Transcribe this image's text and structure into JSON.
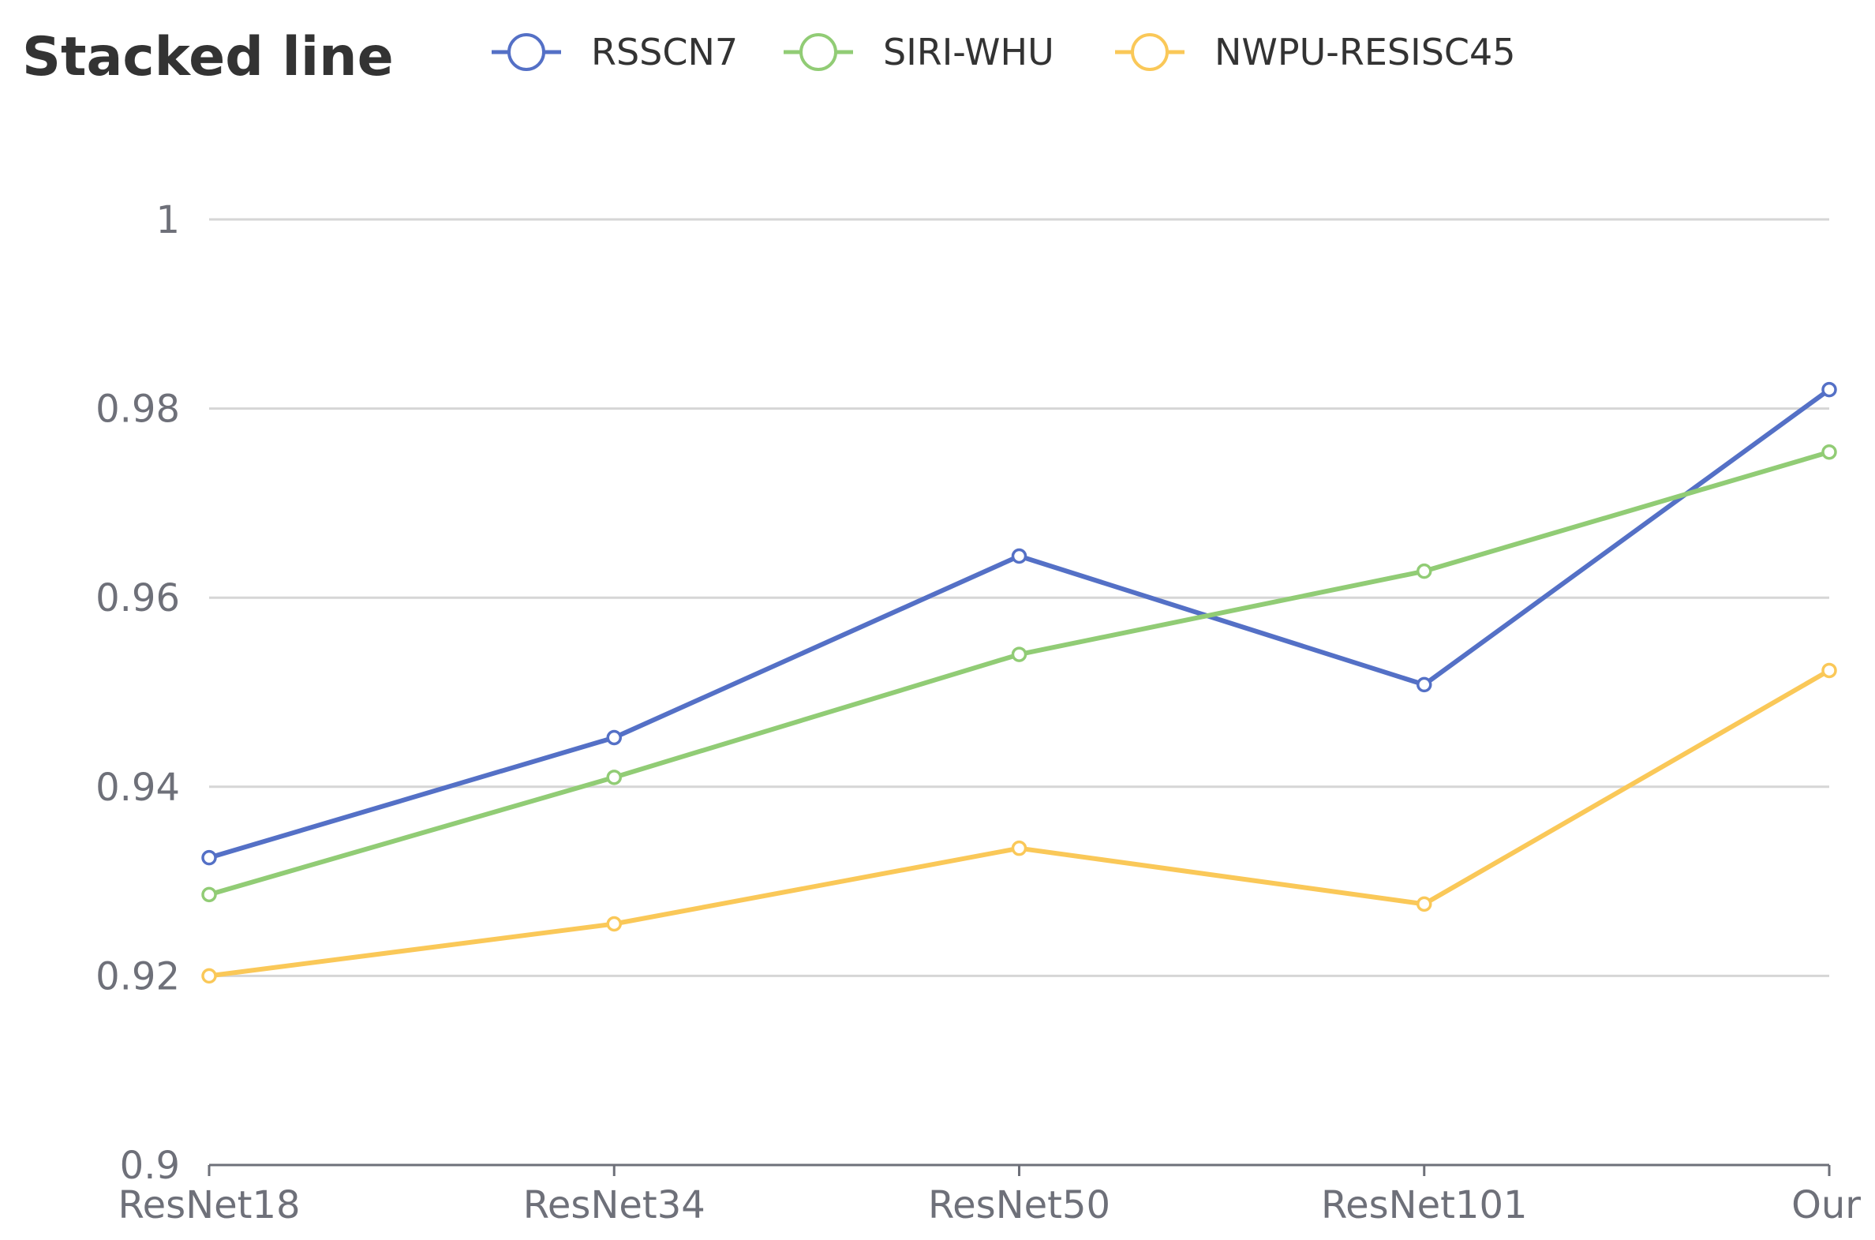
{
  "chart_data": {
    "type": "line",
    "title": "Stacked line",
    "xlabel": "",
    "ylabel": "",
    "categories": [
      "ResNet18",
      "ResNet34",
      "ResNet50",
      "ResNet101",
      "Our"
    ],
    "ylim": [
      0.9,
      1
    ],
    "yticks": [
      "0.9",
      "0.92",
      "0.94",
      "0.96",
      "0.98",
      "1"
    ],
    "grid": true,
    "legend_position": "top",
    "series": [
      {
        "name": "RSSCN7",
        "color": "#5470c6",
        "values": [
          0.9325,
          0.9452,
          0.9644,
          0.9508,
          0.982
        ]
      },
      {
        "name": "SIRI-WHU",
        "color": "#91cc75",
        "values": [
          0.9286,
          0.941,
          0.954,
          0.9628,
          0.9754
        ]
      },
      {
        "name": "NWPU-RESISC45",
        "color": "#fac858",
        "values": [
          0.92,
          0.9255,
          0.9335,
          0.9276,
          0.9523
        ]
      }
    ]
  }
}
